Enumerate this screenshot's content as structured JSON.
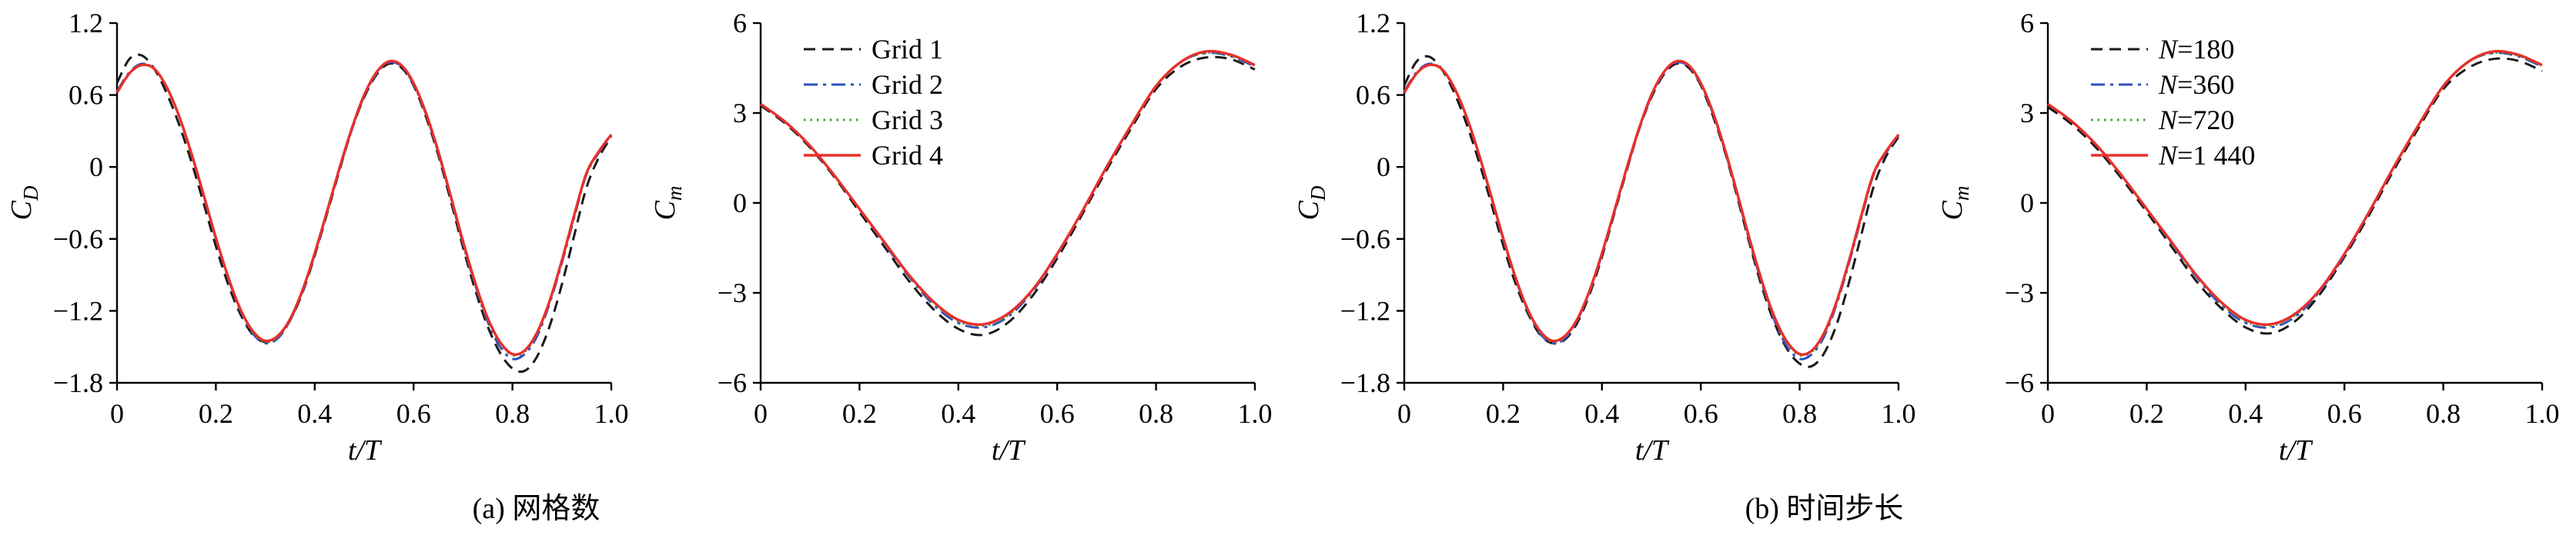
{
  "figure": {
    "captions": {
      "a": "(a) 网格数",
      "b": "(b) 时间步长"
    }
  },
  "chart_data": [
    {
      "type": "line",
      "title": "",
      "xlabel": "t/T",
      "ylabel": "C_D",
      "ylabel_base": "C",
      "ylabel_sub": "D",
      "xlim": [
        0,
        1.0
      ],
      "ylim": [
        -1.8,
        1.2
      ],
      "grid": false,
      "xtick_values": [
        0,
        0.2,
        0.4,
        0.6,
        0.8,
        1.0
      ],
      "xtick_labels": [
        "0",
        "0.2",
        "0.4",
        "0.6",
        "0.8",
        "1.0"
      ],
      "ytick_values": [
        1.2,
        0.6,
        0,
        -0.6,
        -1.2,
        -1.8
      ],
      "ytick_labels": [
        "1.2",
        "0.6",
        "0",
        "−0.6",
        "−1.2",
        "−1.8"
      ],
      "legend": {
        "show": false,
        "position": "none",
        "italic_first": false
      },
      "x": [
        0,
        0.025,
        0.05,
        0.075,
        0.1,
        0.125,
        0.15,
        0.175,
        0.2,
        0.225,
        0.25,
        0.275,
        0.3,
        0.325,
        0.35,
        0.375,
        0.4,
        0.425,
        0.45,
        0.475,
        0.5,
        0.525,
        0.55,
        0.575,
        0.6,
        0.625,
        0.65,
        0.675,
        0.7,
        0.725,
        0.75,
        0.775,
        0.8,
        0.825,
        0.85,
        0.875,
        0.9,
        0.925,
        0.95,
        0.975,
        1.0
      ],
      "series": [
        {
          "name": "Grid 1",
          "color": "#1a1a1a",
          "dash": "dashed",
          "values": [
            0.7,
            0.9,
            0.93,
            0.82,
            0.62,
            0.36,
            0.05,
            -0.3,
            -0.66,
            -0.98,
            -1.23,
            -1.4,
            -1.46,
            -1.42,
            -1.28,
            -1.05,
            -0.74,
            -0.39,
            -0.03,
            0.31,
            0.58,
            0.77,
            0.86,
            0.83,
            0.68,
            0.42,
            0.1,
            -0.28,
            -0.67,
            -1.03,
            -1.33,
            -1.55,
            -1.68,
            -1.7,
            -1.58,
            -1.33,
            -0.98,
            -0.57,
            -0.17,
            0.08,
            0.25
          ]
        },
        {
          "name": "Grid 2",
          "color": "#2f4fc0",
          "dash": "dashdot",
          "values": [
            0.63,
            0.79,
            0.86,
            0.82,
            0.67,
            0.43,
            0.12,
            -0.24,
            -0.6,
            -0.93,
            -1.2,
            -1.39,
            -1.47,
            -1.43,
            -1.28,
            -1.04,
            -0.73,
            -0.38,
            -0.02,
            0.31,
            0.59,
            0.78,
            0.87,
            0.84,
            0.69,
            0.44,
            0.12,
            -0.25,
            -0.64,
            -0.99,
            -1.29,
            -1.5,
            -1.6,
            -1.56,
            -1.41,
            -1.14,
            -0.8,
            -0.42,
            -0.06,
            0.12,
            0.26
          ]
        },
        {
          "name": "Grid 3",
          "color": "#3ca02c",
          "dash": "dotted",
          "values": [
            0.62,
            0.78,
            0.85,
            0.82,
            0.67,
            0.43,
            0.12,
            -0.23,
            -0.59,
            -0.92,
            -1.19,
            -1.38,
            -1.46,
            -1.42,
            -1.27,
            -1.03,
            -0.72,
            -0.37,
            -0.01,
            0.32,
            0.6,
            0.79,
            0.88,
            0.85,
            0.7,
            0.45,
            0.13,
            -0.24,
            -0.63,
            -0.98,
            -1.27,
            -1.47,
            -1.57,
            -1.54,
            -1.39,
            -1.12,
            -0.78,
            -0.41,
            -0.05,
            0.13,
            0.27
          ]
        },
        {
          "name": "Grid 4",
          "color": "#e8302a",
          "dash": "solid",
          "values": [
            0.62,
            0.78,
            0.85,
            0.82,
            0.67,
            0.43,
            0.12,
            -0.23,
            -0.59,
            -0.92,
            -1.19,
            -1.37,
            -1.45,
            -1.41,
            -1.27,
            -1.03,
            -0.72,
            -0.37,
            -0.01,
            0.32,
            0.6,
            0.79,
            0.88,
            0.85,
            0.7,
            0.45,
            0.13,
            -0.24,
            -0.62,
            -0.97,
            -1.26,
            -1.46,
            -1.56,
            -1.53,
            -1.38,
            -1.12,
            -0.78,
            -0.4,
            -0.05,
            0.13,
            0.27
          ]
        }
      ]
    },
    {
      "type": "line",
      "title": "",
      "xlabel": "t/T",
      "ylabel": "C_m",
      "ylabel_base": "C",
      "ylabel_sub": "m",
      "xlim": [
        0,
        1.0
      ],
      "ylim": [
        -6,
        6
      ],
      "grid": false,
      "xtick_values": [
        0,
        0.2,
        0.4,
        0.6,
        0.8,
        1.0
      ],
      "xtick_labels": [
        "0",
        "0.2",
        "0.4",
        "0.6",
        "0.8",
        "1.0"
      ],
      "ytick_values": [
        6,
        3,
        0,
        -3,
        -6
      ],
      "ytick_labels": [
        "6",
        "3",
        "0",
        "−3",
        "−6"
      ],
      "legend": {
        "show": true,
        "position": "top-left",
        "italic_first": false
      },
      "x": [
        0,
        0.05,
        0.1,
        0.15,
        0.2,
        0.25,
        0.3,
        0.35,
        0.4,
        0.45,
        0.5,
        0.55,
        0.6,
        0.65,
        0.7,
        0.75,
        0.8,
        0.85,
        0.9,
        0.95,
        1.0
      ],
      "series": [
        {
          "name": "Grid 1",
          "color": "#1a1a1a",
          "dash": "dashed",
          "values": [
            3.25,
            2.65,
            1.85,
            0.85,
            -0.3,
            -1.45,
            -2.6,
            -3.55,
            -4.2,
            -4.4,
            -4.0,
            -3.1,
            -1.85,
            -0.4,
            1.1,
            2.5,
            3.8,
            4.55,
            4.85,
            4.8,
            4.45
          ]
        },
        {
          "name": "Grid 2",
          "color": "#2f4fc0",
          "dash": "dashdot",
          "values": [
            3.3,
            2.7,
            1.9,
            0.9,
            -0.2,
            -1.35,
            -2.45,
            -3.4,
            -4.0,
            -4.15,
            -3.8,
            -2.95,
            -1.75,
            -0.3,
            1.2,
            2.6,
            3.9,
            4.7,
            5.0,
            4.9,
            4.55
          ]
        },
        {
          "name": "Grid 3",
          "color": "#3ca02c",
          "dash": "dotted",
          "values": [
            3.3,
            2.7,
            1.9,
            0.9,
            -0.2,
            -1.3,
            -2.4,
            -3.35,
            -3.95,
            -4.1,
            -3.75,
            -2.9,
            -1.7,
            -0.3,
            1.2,
            2.6,
            3.9,
            4.7,
            5.0,
            4.92,
            4.58
          ]
        },
        {
          "name": "Grid 4",
          "color": "#e8302a",
          "dash": "solid",
          "values": [
            3.3,
            2.7,
            1.9,
            0.9,
            -0.2,
            -1.3,
            -2.4,
            -3.3,
            -3.9,
            -4.05,
            -3.7,
            -2.9,
            -1.7,
            -0.3,
            1.2,
            2.6,
            3.9,
            4.7,
            5.05,
            4.95,
            4.6
          ]
        }
      ]
    },
    {
      "type": "line",
      "title": "",
      "xlabel": "t/T",
      "ylabel": "C_D",
      "ylabel_base": "C",
      "ylabel_sub": "D",
      "xlim": [
        0,
        1.0
      ],
      "ylim": [
        -1.8,
        1.2
      ],
      "grid": false,
      "xtick_values": [
        0,
        0.2,
        0.4,
        0.6,
        0.8,
        1.0
      ],
      "xtick_labels": [
        "0",
        "0.2",
        "0.4",
        "0.6",
        "0.8",
        "1.0"
      ],
      "ytick_values": [
        1.2,
        0.6,
        0,
        -0.6,
        -1.2,
        -1.8
      ],
      "ytick_labels": [
        "1.2",
        "0.6",
        "0",
        "−0.6",
        "−1.2",
        "−1.8"
      ],
      "legend": {
        "show": false,
        "position": "none",
        "italic_first": false
      },
      "x": [
        0,
        0.025,
        0.05,
        0.075,
        0.1,
        0.125,
        0.15,
        0.175,
        0.2,
        0.225,
        0.25,
        0.275,
        0.3,
        0.325,
        0.35,
        0.375,
        0.4,
        0.425,
        0.45,
        0.475,
        0.5,
        0.525,
        0.55,
        0.575,
        0.6,
        0.625,
        0.65,
        0.675,
        0.7,
        0.725,
        0.75,
        0.775,
        0.8,
        0.825,
        0.85,
        0.875,
        0.9,
        0.925,
        0.95,
        0.975,
        1.0
      ],
      "series": [
        {
          "name": "N=180",
          "color": "#1a1a1a",
          "dash": "dashed",
          "values": [
            0.68,
            0.88,
            0.92,
            0.82,
            0.63,
            0.37,
            0.06,
            -0.29,
            -0.65,
            -0.97,
            -1.22,
            -1.4,
            -1.47,
            -1.44,
            -1.3,
            -1.06,
            -0.75,
            -0.39,
            -0.03,
            0.31,
            0.58,
            0.77,
            0.86,
            0.83,
            0.68,
            0.42,
            0.11,
            -0.27,
            -0.66,
            -1.02,
            -1.31,
            -1.52,
            -1.64,
            -1.66,
            -1.55,
            -1.31,
            -0.96,
            -0.56,
            -0.16,
            0.09,
            0.25
          ]
        },
        {
          "name": "N=360",
          "color": "#2f4fc0",
          "dash": "dashdot",
          "values": [
            0.63,
            0.79,
            0.86,
            0.82,
            0.67,
            0.43,
            0.12,
            -0.24,
            -0.6,
            -0.93,
            -1.2,
            -1.39,
            -1.47,
            -1.43,
            -1.28,
            -1.04,
            -0.73,
            -0.38,
            -0.02,
            0.31,
            0.59,
            0.78,
            0.87,
            0.84,
            0.69,
            0.44,
            0.12,
            -0.25,
            -0.64,
            -0.99,
            -1.29,
            -1.5,
            -1.6,
            -1.56,
            -1.41,
            -1.14,
            -0.8,
            -0.42,
            -0.06,
            0.12,
            0.26
          ]
        },
        {
          "name": "N=720",
          "color": "#3ca02c",
          "dash": "dotted",
          "values": [
            0.62,
            0.78,
            0.85,
            0.82,
            0.67,
            0.43,
            0.12,
            -0.23,
            -0.59,
            -0.92,
            -1.19,
            -1.38,
            -1.46,
            -1.42,
            -1.27,
            -1.03,
            -0.72,
            -0.37,
            -0.01,
            0.32,
            0.6,
            0.79,
            0.88,
            0.85,
            0.7,
            0.45,
            0.13,
            -0.24,
            -0.63,
            -0.98,
            -1.27,
            -1.47,
            -1.57,
            -1.54,
            -1.39,
            -1.12,
            -0.78,
            -0.41,
            -0.05,
            0.13,
            0.27
          ]
        },
        {
          "name": "N=1 440",
          "color": "#e8302a",
          "dash": "solid",
          "values": [
            0.62,
            0.78,
            0.85,
            0.82,
            0.67,
            0.43,
            0.12,
            -0.23,
            -0.59,
            -0.92,
            -1.19,
            -1.37,
            -1.45,
            -1.41,
            -1.27,
            -1.03,
            -0.72,
            -0.37,
            -0.01,
            0.32,
            0.6,
            0.79,
            0.88,
            0.85,
            0.7,
            0.45,
            0.13,
            -0.24,
            -0.62,
            -0.97,
            -1.26,
            -1.46,
            -1.56,
            -1.53,
            -1.38,
            -1.12,
            -0.78,
            -0.4,
            -0.05,
            0.13,
            0.27
          ]
        }
      ]
    },
    {
      "type": "line",
      "title": "",
      "xlabel": "t/T",
      "ylabel": "C_m",
      "ylabel_base": "C",
      "ylabel_sub": "m",
      "xlim": [
        0,
        1.0
      ],
      "ylim": [
        -6,
        6
      ],
      "grid": false,
      "xtick_values": [
        0,
        0.2,
        0.4,
        0.6,
        0.8,
        1.0
      ],
      "xtick_labels": [
        "0",
        "0.2",
        "0.4",
        "0.6",
        "0.8",
        "1.0"
      ],
      "ytick_values": [
        6,
        3,
        0,
        -3,
        -6
      ],
      "ytick_labels": [
        "6",
        "3",
        "0",
        "−3",
        "−6"
      ],
      "legend": {
        "show": true,
        "position": "top-left",
        "italic_first": true
      },
      "x": [
        0,
        0.05,
        0.1,
        0.15,
        0.2,
        0.25,
        0.3,
        0.35,
        0.4,
        0.45,
        0.5,
        0.55,
        0.6,
        0.65,
        0.7,
        0.75,
        0.8,
        0.85,
        0.9,
        0.95,
        1.0
      ],
      "series": [
        {
          "name": "N=180",
          "color": "#1a1a1a",
          "dash": "dashed",
          "values": [
            3.2,
            2.6,
            1.8,
            0.8,
            -0.3,
            -1.45,
            -2.6,
            -3.5,
            -4.15,
            -4.35,
            -3.95,
            -3.05,
            -1.8,
            -0.4,
            1.1,
            2.5,
            3.8,
            4.5,
            4.8,
            4.75,
            4.4
          ]
        },
        {
          "name": "N=360",
          "color": "#2f4fc0",
          "dash": "dashdot",
          "values": [
            3.3,
            2.7,
            1.9,
            0.9,
            -0.2,
            -1.35,
            -2.45,
            -3.4,
            -4.0,
            -4.15,
            -3.8,
            -2.95,
            -1.75,
            -0.3,
            1.2,
            2.6,
            3.9,
            4.7,
            5.0,
            4.9,
            4.55
          ]
        },
        {
          "name": "N=720",
          "color": "#3ca02c",
          "dash": "dotted",
          "values": [
            3.3,
            2.7,
            1.9,
            0.9,
            -0.2,
            -1.3,
            -2.4,
            -3.35,
            -3.95,
            -4.1,
            -3.75,
            -2.9,
            -1.7,
            -0.3,
            1.2,
            2.6,
            3.9,
            4.7,
            5.0,
            4.92,
            4.58
          ]
        },
        {
          "name": "N=1 440",
          "color": "#e8302a",
          "dash": "solid",
          "values": [
            3.3,
            2.7,
            1.9,
            0.9,
            -0.2,
            -1.3,
            -2.4,
            -3.3,
            -3.9,
            -4.05,
            -3.7,
            -2.9,
            -1.7,
            -0.3,
            1.2,
            2.6,
            3.9,
            4.7,
            5.05,
            4.95,
            4.6
          ]
        }
      ]
    }
  ]
}
